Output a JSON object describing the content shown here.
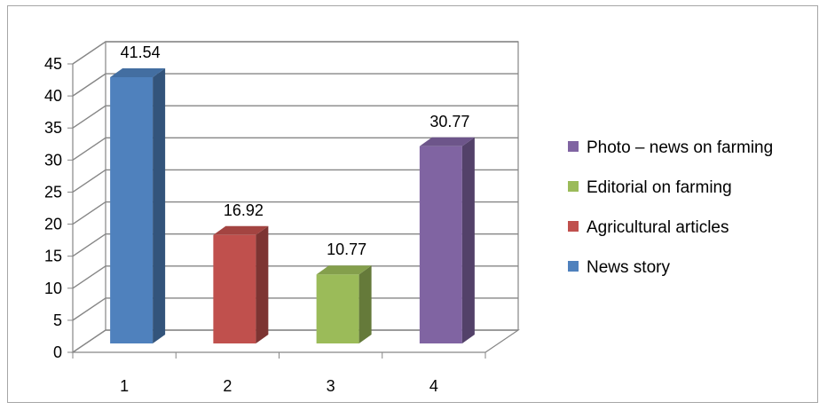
{
  "chart_data": {
    "type": "bar",
    "categories": [
      "1",
      "2",
      "3",
      "4"
    ],
    "series": [
      {
        "name": "News story",
        "values": [
          41.54,
          null,
          null,
          null
        ],
        "color": "#4f81bd"
      },
      {
        "name": "Agricultural articles",
        "values": [
          null,
          16.92,
          null,
          null
        ],
        "color": "#c0504d"
      },
      {
        "name": "Editorial on farming",
        "values": [
          null,
          null,
          10.77,
          null
        ],
        "color": "#9bbb59"
      },
      {
        "name": "Photo – news on farming",
        "values": [
          null,
          null,
          null,
          30.77
        ],
        "color": "#8064a2"
      }
    ],
    "ylim": [
      0,
      45
    ],
    "yticks": [
      0,
      5,
      10,
      15,
      20,
      25,
      30,
      35,
      40,
      45
    ],
    "data_labels": [
      "41.54",
      "16.92",
      "10.77",
      "30.77"
    ],
    "legend_position": "right",
    "legend_order": [
      "Photo – news on farming",
      "Editorial on farming",
      "Agricultural articles",
      "News story"
    ],
    "grid": true,
    "style": "3d"
  }
}
